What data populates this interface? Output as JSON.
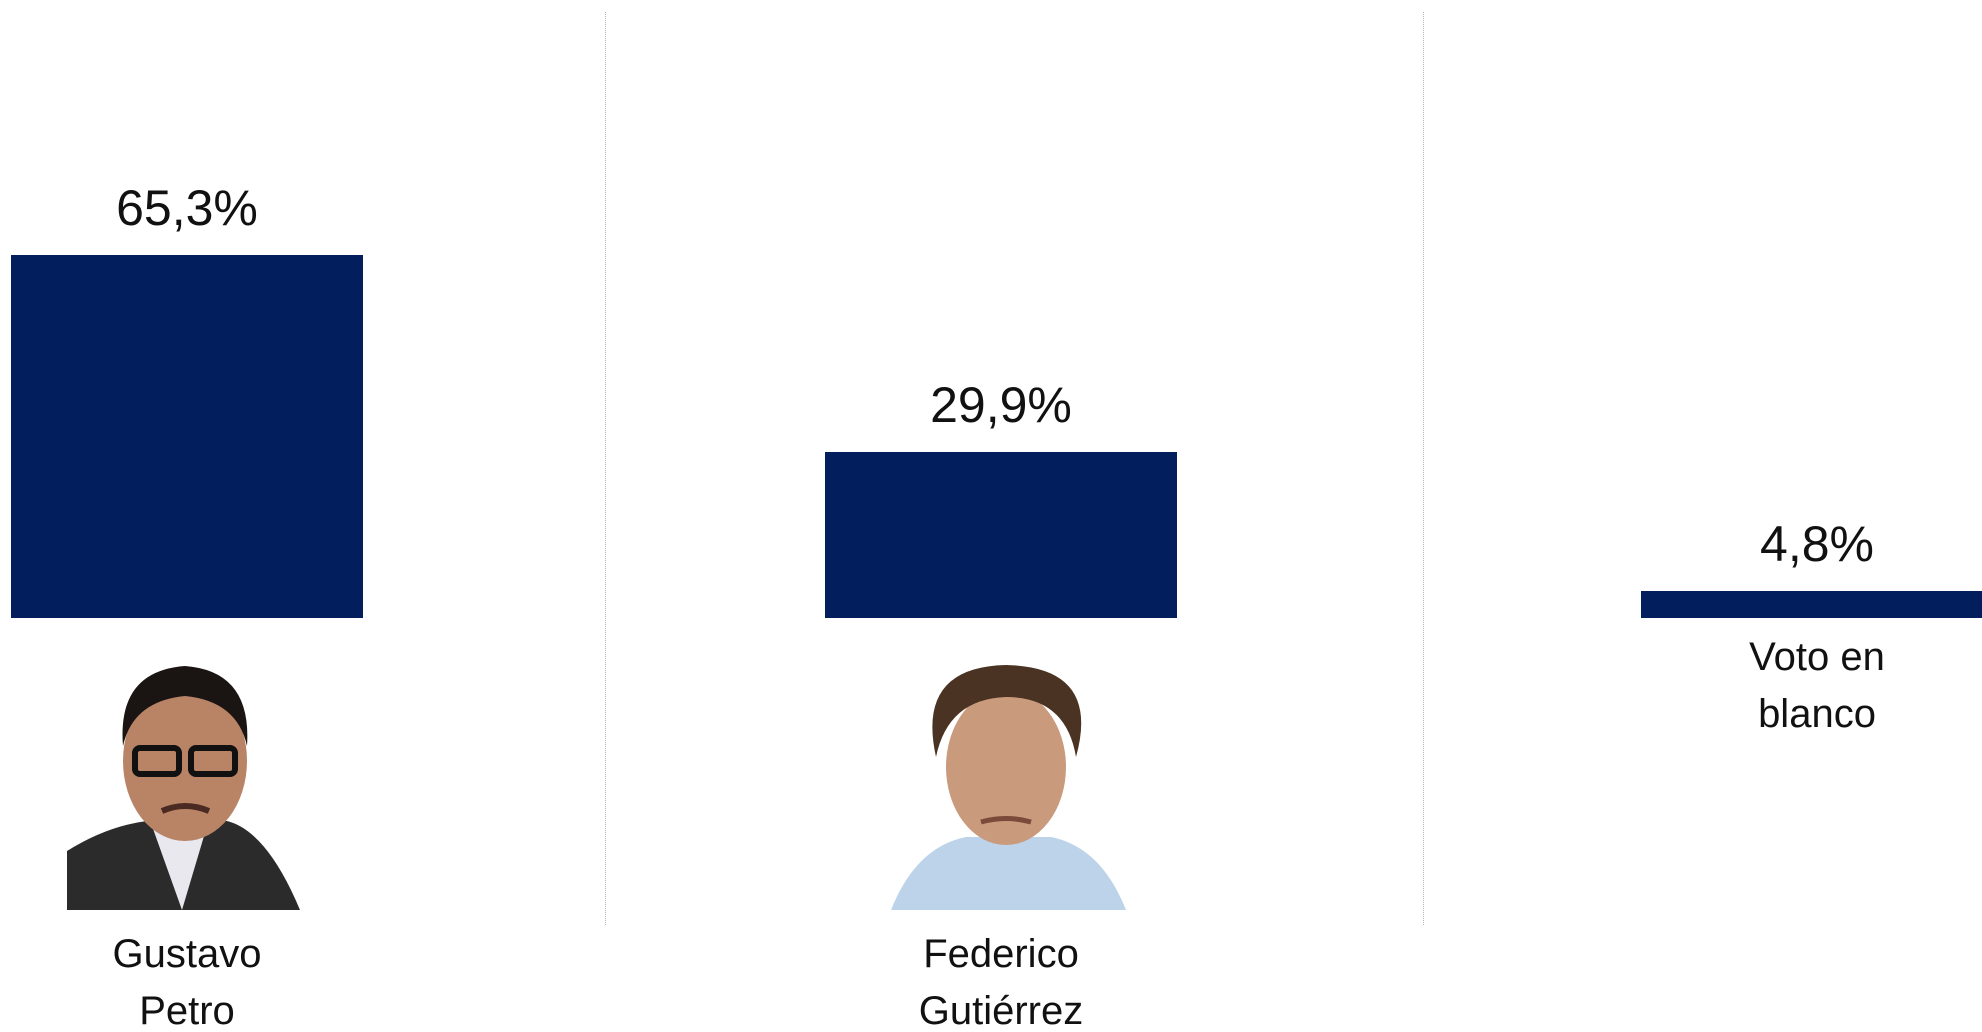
{
  "chart_data": {
    "type": "bar",
    "categories": [
      "Gustavo Petro",
      "Federico Gutiérrez",
      "Voto en blanco"
    ],
    "values": [
      65.3,
      29.9,
      4.8
    ],
    "value_labels": [
      "65,3%",
      "29,9%",
      "4,8%"
    ],
    "color": "#031e5c"
  }
}
